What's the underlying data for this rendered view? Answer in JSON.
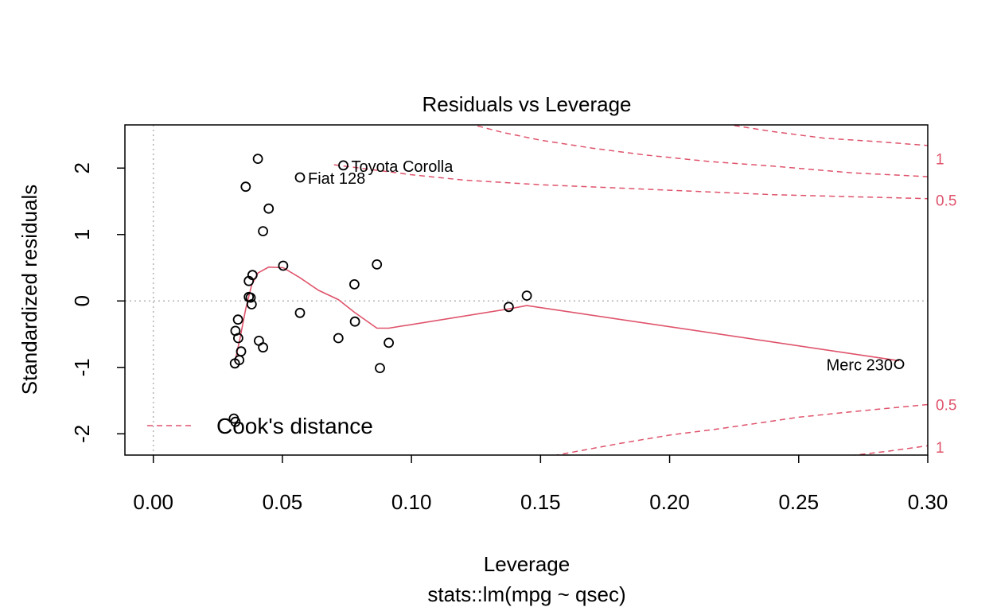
{
  "chart_data": {
    "type": "scatter",
    "title": "Residuals vs Leverage",
    "xlabel": "Leverage",
    "ylabel": "Standardized residuals",
    "subtitle": "stats::lm(mpg ~ qsec)",
    "xlim": [
      -0.011,
      0.3
    ],
    "ylim": [
      -2.32,
      2.65
    ],
    "x_ticks": [
      0.0,
      0.05,
      0.1,
      0.15,
      0.2,
      0.25,
      0.3
    ],
    "x_tick_labels": [
      "0.00",
      "0.05",
      "0.10",
      "0.15",
      "0.20",
      "0.25",
      "0.30"
    ],
    "y_ticks": [
      -2,
      -1,
      0,
      1,
      2
    ],
    "y_tick_labels": [
      "-2",
      "-1",
      "0",
      "1",
      "2"
    ],
    "grid": false,
    "reference_lines": {
      "x": 0,
      "y": 0
    },
    "points": [
      {
        "x": 0.0405,
        "y": 2.14
      },
      {
        "x": 0.0358,
        "y": 1.72
      },
      {
        "x": 0.0447,
        "y": 1.39
      },
      {
        "x": 0.0425,
        "y": 1.05
      },
      {
        "x": 0.0503,
        "y": 0.53
      },
      {
        "x": 0.0866,
        "y": 0.55
      },
      {
        "x": 0.0384,
        "y": 0.39
      },
      {
        "x": 0.037,
        "y": 0.3
      },
      {
        "x": 0.0779,
        "y": 0.25
      },
      {
        "x": 0.037,
        "y": 0.06
      },
      {
        "x": 0.0377,
        "y": 0.05
      },
      {
        "x": 0.0381,
        "y": -0.05
      },
      {
        "x": 0.1447,
        "y": 0.08
      },
      {
        "x": 0.1377,
        "y": -0.09
      },
      {
        "x": 0.0568,
        "y": -0.18
      },
      {
        "x": 0.0328,
        "y": -0.28
      },
      {
        "x": 0.0781,
        "y": -0.31
      },
      {
        "x": 0.0318,
        "y": -0.45
      },
      {
        "x": 0.0329,
        "y": -0.56
      },
      {
        "x": 0.0717,
        "y": -0.56
      },
      {
        "x": 0.0409,
        "y": -0.6
      },
      {
        "x": 0.0912,
        "y": -0.63
      },
      {
        "x": 0.0425,
        "y": -0.7
      },
      {
        "x": 0.034,
        "y": -0.76
      },
      {
        "x": 0.0333,
        "y": -0.89
      },
      {
        "x": 0.0316,
        "y": -0.94
      },
      {
        "x": 0.0878,
        "y": -1.01
      },
      {
        "x": 0.0312,
        "y": -1.77
      },
      {
        "x": 0.0318,
        "y": -1.82
      },
      {
        "x": 0.0568,
        "y": 1.86,
        "label": "Fiat 128",
        "label_side": "right"
      },
      {
        "x": 0.0736,
        "y": 2.04,
        "label": "Toyota Corolla",
        "label_side": "right"
      },
      {
        "x": 0.2889,
        "y": -0.95,
        "label": "Merc 230",
        "label_side": "left"
      }
    ],
    "smoother": {
      "name": "",
      "color": "#DF536B",
      "x": [
        0.0316,
        0.0336,
        0.0358,
        0.0381,
        0.0405,
        0.0447,
        0.0503,
        0.0568,
        0.064,
        0.0717,
        0.0779,
        0.0866,
        0.0912,
        0.1377,
        0.1447,
        0.2889
      ],
      "y": [
        -0.92,
        -0.56,
        -0.12,
        0.24,
        0.42,
        0.51,
        0.5,
        0.35,
        0.16,
        0.02,
        -0.17,
        -0.41,
        -0.41,
        -0.12,
        -0.07,
        -0.9
      ]
    },
    "cooks_contours": [
      {
        "label": "1",
        "sign": 1,
        "x": [
          0.122,
          0.135,
          0.15,
          0.17,
          0.19,
          0.215,
          0.24,
          0.27,
          0.3
        ],
        "y": [
          2.67,
          2.54,
          2.42,
          2.3,
          2.2,
          2.1,
          2.03,
          1.93,
          1.87
        ]
      },
      {
        "label": "0.5",
        "sign": 1,
        "x": [
          0.225,
          0.24,
          0.26,
          0.28,
          0.3
        ],
        "y": [
          2.64,
          2.55,
          2.45,
          2.4,
          2.34
        ]
      },
      {
        "label": "0.5",
        "sign": 1,
        "x": [
          0.07,
          0.1,
          0.12,
          0.15,
          0.18,
          0.21,
          0.24,
          0.27,
          0.3
        ],
        "y": [
          2.05,
          1.9,
          1.82,
          1.75,
          1.7,
          1.65,
          1.6,
          1.57,
          1.54
        ]
      },
      {
        "label": "0.5",
        "sign": -1,
        "x": [
          0.155,
          0.18,
          0.2,
          0.22,
          0.25,
          0.27,
          0.3
        ],
        "y": [
          -2.33,
          -2.15,
          -2.02,
          -1.92,
          -1.75,
          -1.67,
          -1.56
        ]
      },
      {
        "label": "1",
        "sign": -1,
        "x": [
          0.27,
          0.285,
          0.3
        ],
        "y": [
          -2.33,
          -2.26,
          -2.18
        ]
      }
    ],
    "margin_labels": [
      {
        "text": "1",
        "y": 2.14
      },
      {
        "text": "0.5",
        "y": 1.52
      },
      {
        "text": "0.5",
        "y": -1.56
      },
      {
        "text": "1",
        "y": -2.2
      }
    ],
    "legend": {
      "text": "Cook's distance",
      "style": "dashed",
      "color": "#DF536B",
      "position": "bottom-left"
    }
  }
}
